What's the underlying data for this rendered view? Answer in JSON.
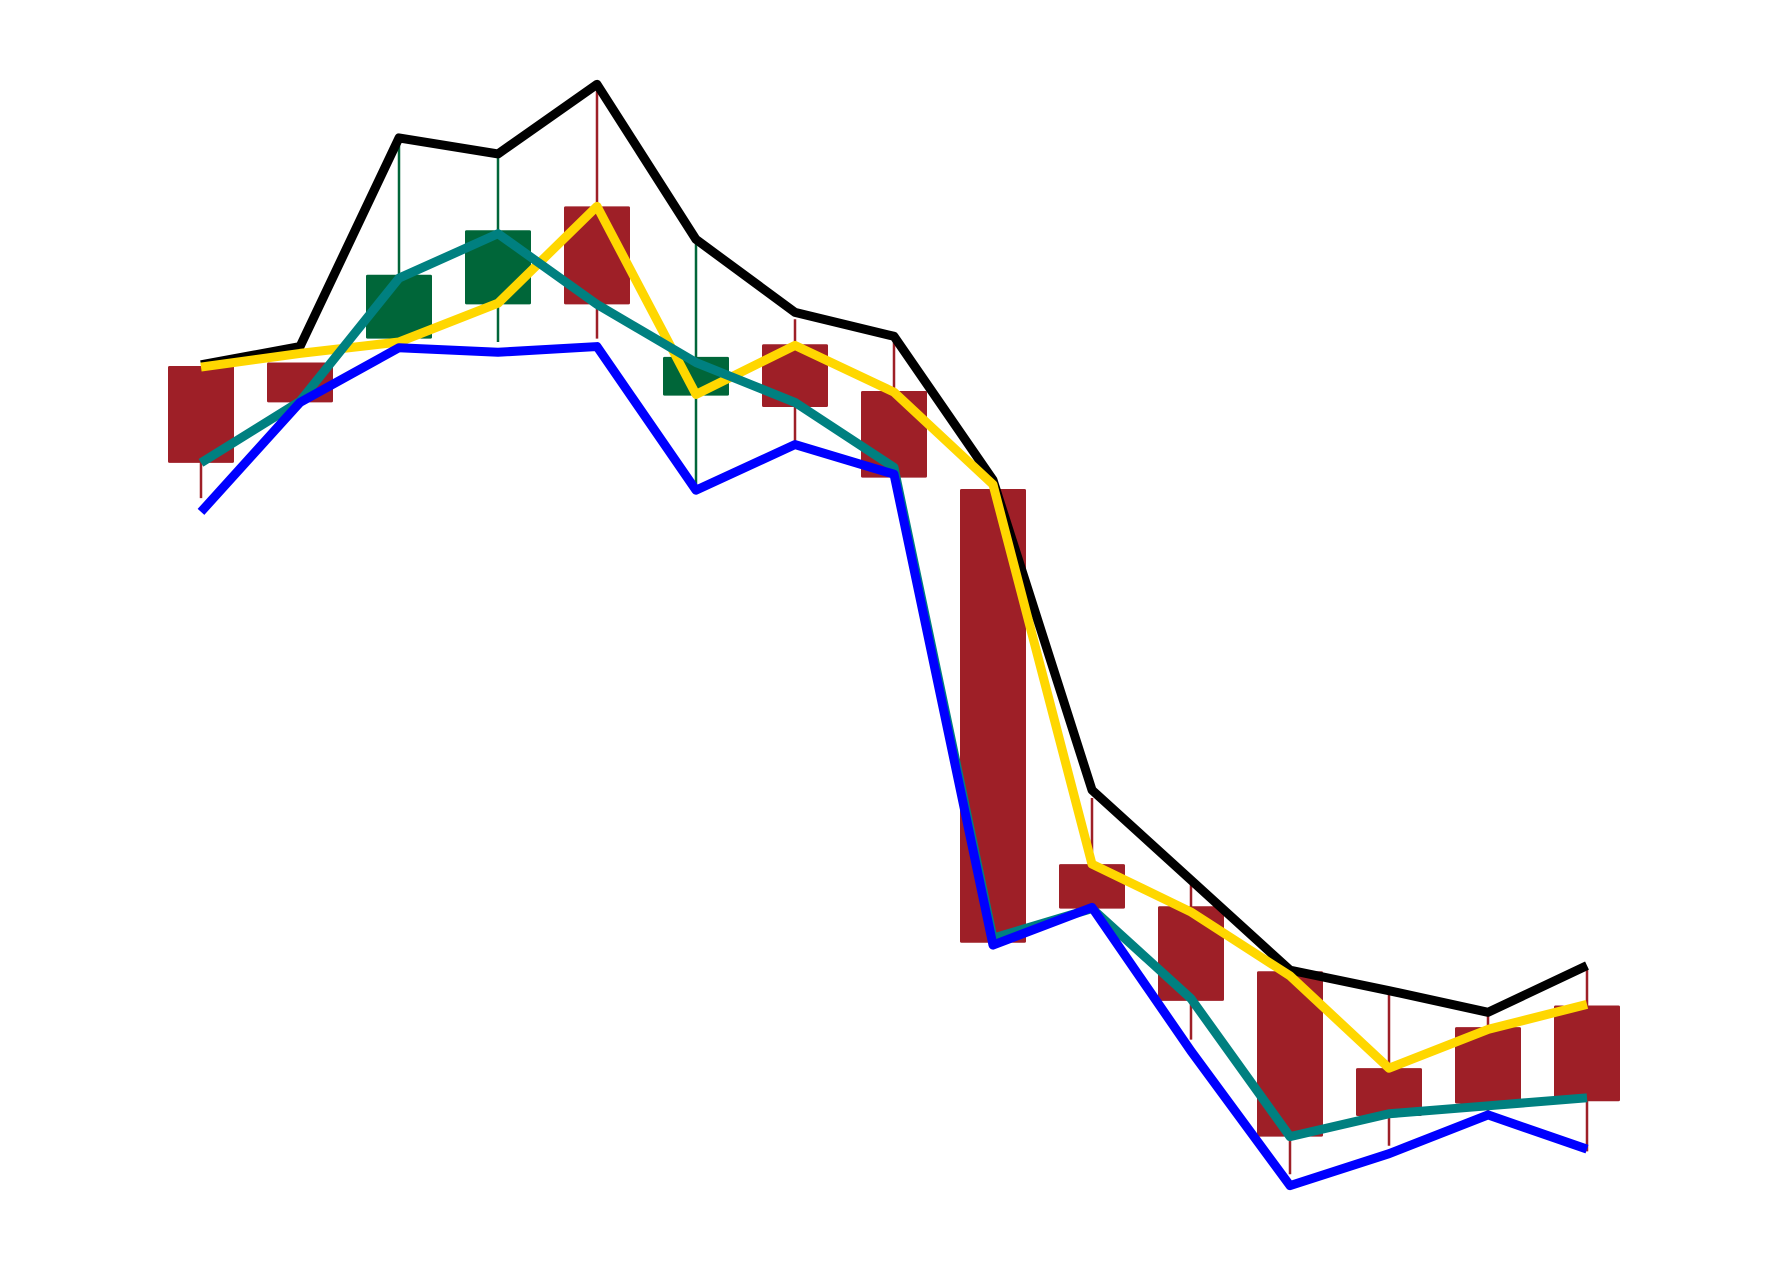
{
  "chart_data": {
    "type": "candlestick",
    "open": [
      77.9,
      78.2,
      80.3,
      83.3,
      91.9,
      75.3,
      79.8,
      75.7,
      67.1,
      34.2,
      30.5,
      24.8,
      16.3,
      19.9,
      21.8
    ],
    "high": [
      77.9,
      78.2,
      97.5,
      96.5,
      102,
      88.8,
      82,
      80.3,
      67.1,
      40,
      33,
      24.8,
      23,
      21,
      25
    ],
    "low": [
      66.3,
      74.7,
      80.3,
      80,
      80.3,
      67,
      71,
      68.1,
      27.3,
      30.3,
      18.8,
      7,
      9.5,
      12.5,
      9
    ],
    "close": [
      69.4,
      74.7,
      85.9,
      89.8,
      83.3,
      78.7,
      74.3,
      68.1,
      27.3,
      30.3,
      22.2,
      10.3,
      12.1,
      13.2,
      13.4
    ],
    "up_color": "#006639",
    "down_color": "#9e1f27",
    "series": [
      {
        "color": "#000000",
        "values": [
          78,
          79.6,
          97.9,
          96.5,
          102.6,
          89,
          82.6,
          80.5,
          67.9,
          40.7,
          32.8,
          24.9,
          23.1,
          21.2,
          25.3
        ]
      },
      {
        "color": "#ffd700",
        "values": [
          77.8,
          79,
          80,
          83.4,
          91.9,
          75.4,
          79.7,
          75.6,
          67.5,
          34.2,
          30,
          24.4,
          16.3,
          19.7,
          21.9
        ]
      },
      {
        "color": "#008080",
        "values": [
          69.4,
          74.8,
          85.6,
          89.5,
          83.3,
          78.2,
          74.7,
          69,
          27.7,
          30.3,
          22.4,
          10.3,
          12.3,
          13,
          13.7
        ]
      },
      {
        "color": "#0000ff",
        "values": [
          65.1,
          74.7,
          79.5,
          79.1,
          79.6,
          67,
          71,
          68.4,
          27.1,
          30.4,
          17.8,
          6,
          8.8,
          12.2,
          9.2
        ]
      }
    ],
    "ylim": [
      0,
      110
    ]
  }
}
